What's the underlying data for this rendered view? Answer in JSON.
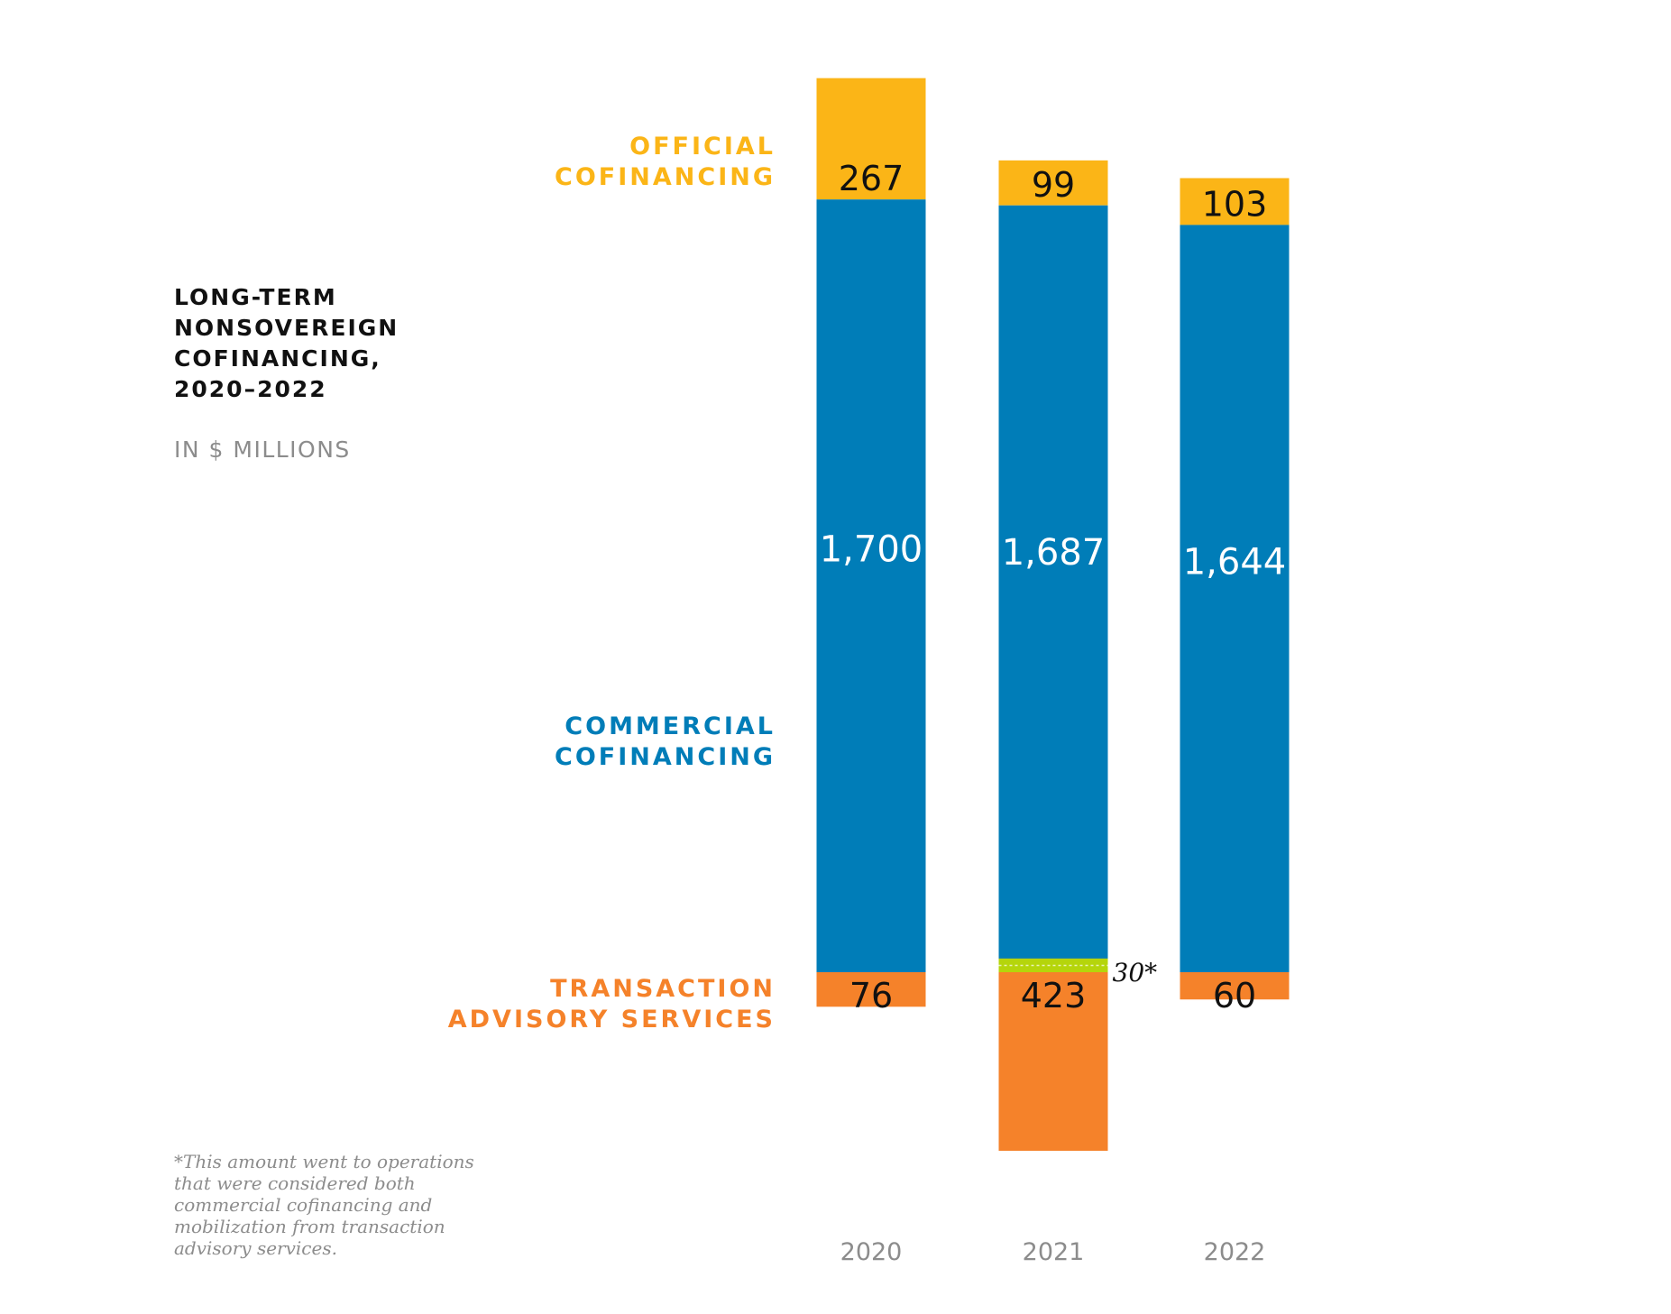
{
  "title": "LONG-TERM\nNONSOVEREIGN\nCOFINANCING,\n2020–2022",
  "unit_label": "IN $ MILLIONS",
  "footnote": "*This amount went to operations\nthat were considered both\ncommercial cofinancing and\nmobilization from transaction\nadvisory services.",
  "segment_labels": {
    "official": "OFFICIAL\nCOFINANCING",
    "commercial": "COMMERCIAL\nCOFINANCING",
    "transaction": "TRANSACTION\nADVISORY SERVICES"
  },
  "colors": {
    "official": "#FBB517",
    "commercial": "#007DB8",
    "transaction": "#F5822A",
    "overlap": "#B5D50B",
    "axis_text": "#8C8C8C"
  },
  "chart_data": {
    "type": "bar",
    "stacked": true,
    "categories": [
      "2020",
      "2021",
      "2022"
    ],
    "series": [
      {
        "name": "OFFICIAL COFINANCING",
        "values": [
          267,
          99,
          103
        ],
        "labels": [
          "267",
          "99",
          "103"
        ]
      },
      {
        "name": "COMMERCIAL COFINANCING",
        "values": [
          1700,
          1687,
          1644
        ],
        "labels": [
          "1,700",
          "1,687",
          "1,644"
        ]
      },
      {
        "name": "TRANSACTION ADVISORY SERVICES",
        "values": [
          76,
          423,
          60
        ],
        "labels": [
          "76",
          "423",
          "60"
        ]
      }
    ],
    "overlap": {
      "category": "2021",
      "value": 30,
      "label": "30*"
    },
    "ylabel": "IN $ MILLIONS"
  }
}
